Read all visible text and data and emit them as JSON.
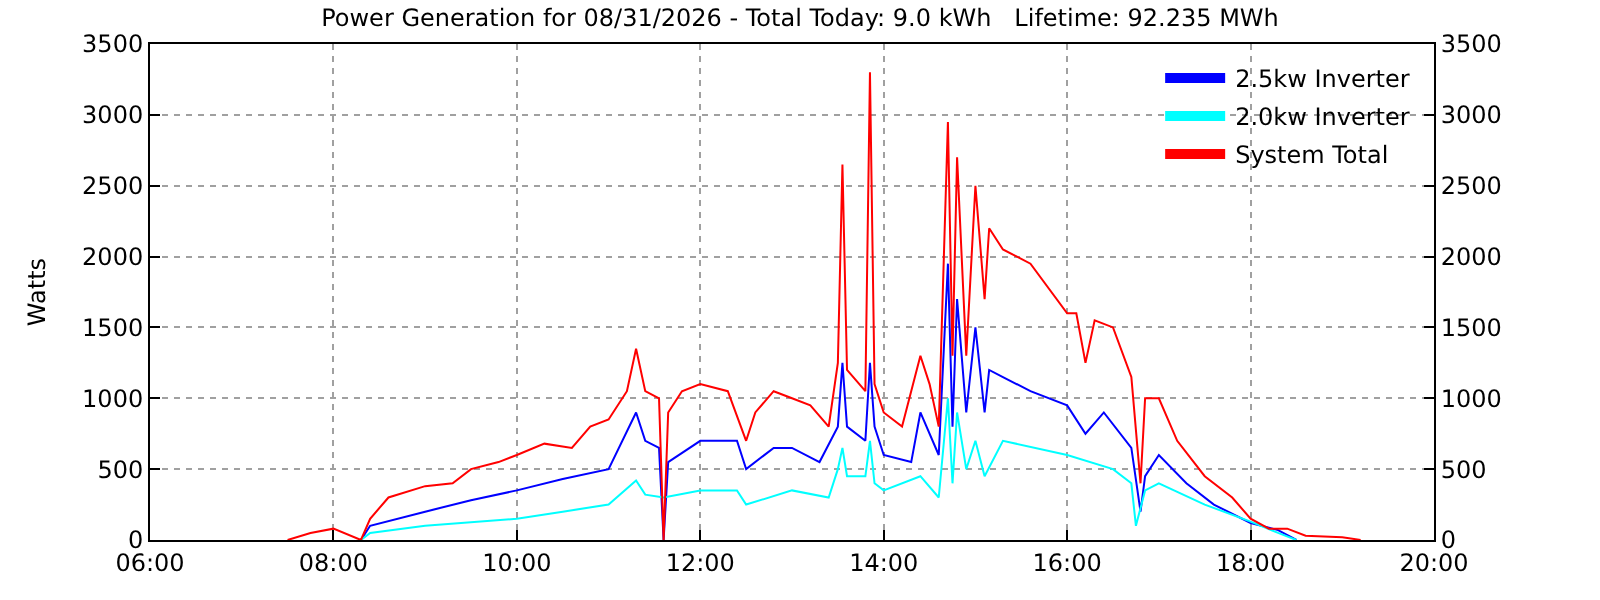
{
  "chart_data": {
    "type": "line",
    "title": "Power Generation for 08/31/2026 - Total Today: 9.0 kWh   Lifetime: 92.235 MWh",
    "ylabel": "Watts",
    "xlim": [
      6,
      20
    ],
    "xticks": [
      {
        "value": 6,
        "label": "06:00"
      },
      {
        "value": 8,
        "label": "08:00"
      },
      {
        "value": 10,
        "label": "10:00"
      },
      {
        "value": 12,
        "label": "12:00"
      },
      {
        "value": 14,
        "label": "14:00"
      },
      {
        "value": 16,
        "label": "16:00"
      },
      {
        "value": 18,
        "label": "18:00"
      },
      {
        "value": 20,
        "label": "20:00"
      }
    ],
    "ylim": [
      0,
      3500
    ],
    "yticks": [
      0,
      500,
      1000,
      1500,
      2000,
      2500,
      3000,
      3500
    ],
    "y2lim": [
      0,
      3500
    ],
    "y2ticks": [
      0,
      500,
      1000,
      1500,
      2000,
      2500,
      3000,
      3500
    ],
    "grid": true,
    "legend": "top right",
    "line_style": "solid",
    "marker": "none",
    "series": [
      {
        "name": "2.5kw Inverter",
        "color": "#0000ff",
        "x": [
          8.3,
          8.4,
          9.0,
          9.5,
          10.0,
          10.5,
          11.0,
          11.3,
          11.4,
          11.55,
          11.6,
          11.65,
          12.0,
          12.4,
          12.5,
          12.8,
          13.0,
          13.3,
          13.5,
          13.55,
          13.6,
          13.8,
          13.85,
          13.9,
          14.0,
          14.3,
          14.4,
          14.6,
          14.7,
          14.75,
          14.8,
          14.9,
          15.0,
          15.1,
          15.15,
          15.3,
          15.6,
          16.0,
          16.2,
          16.4,
          16.7,
          16.8,
          16.85,
          17.0,
          17.3,
          17.6,
          18.0,
          18.3,
          18.5
        ],
        "values": [
          0,
          100,
          200,
          280,
          350,
          430,
          500,
          900,
          700,
          650,
          0,
          550,
          700,
          700,
          500,
          650,
          650,
          550,
          800,
          1250,
          800,
          700,
          1250,
          800,
          600,
          550,
          900,
          600,
          1950,
          800,
          1700,
          900,
          1500,
          900,
          1200,
          1150,
          1050,
          950,
          750,
          900,
          650,
          200,
          450,
          600,
          400,
          250,
          120,
          70,
          0
        ]
      },
      {
        "name": "2.0kw Inverter",
        "color": "#00ffff",
        "x": [
          8.3,
          8.4,
          9.0,
          10.0,
          10.5,
          11.0,
          11.3,
          11.4,
          11.6,
          12.0,
          12.4,
          12.5,
          13.0,
          13.4,
          13.5,
          13.55,
          13.6,
          13.8,
          13.85,
          13.9,
          14.0,
          14.4,
          14.6,
          14.7,
          14.75,
          14.8,
          14.9,
          15.0,
          15.1,
          15.3,
          16.0,
          16.5,
          16.7,
          16.75,
          16.85,
          17.0,
          17.5,
          18.0,
          18.3,
          18.5
        ],
        "values": [
          0,
          50,
          100,
          150,
          200,
          250,
          420,
          320,
          300,
          350,
          350,
          250,
          350,
          300,
          500,
          650,
          450,
          450,
          700,
          400,
          350,
          450,
          300,
          1000,
          400,
          900,
          500,
          700,
          450,
          700,
          600,
          500,
          400,
          100,
          350,
          400,
          250,
          130,
          50,
          0
        ]
      },
      {
        "name": "System Total",
        "color": "#ff0000",
        "x": [
          7.5,
          7.75,
          8.0,
          8.3,
          8.4,
          8.6,
          9.0,
          9.3,
          9.5,
          9.8,
          10.0,
          10.3,
          10.6,
          10.8,
          11.0,
          11.2,
          11.3,
          11.4,
          11.55,
          11.6,
          11.65,
          11.8,
          12.0,
          12.3,
          12.5,
          12.6,
          12.8,
          13.0,
          13.2,
          13.4,
          13.5,
          13.55,
          13.6,
          13.8,
          13.85,
          13.9,
          14.0,
          14.2,
          14.4,
          14.5,
          14.6,
          14.7,
          14.75,
          14.8,
          14.9,
          15.0,
          15.1,
          15.15,
          15.3,
          15.6,
          16.0,
          16.1,
          16.2,
          16.3,
          16.5,
          16.7,
          16.8,
          16.85,
          17.0,
          17.2,
          17.5,
          17.8,
          18.0,
          18.2,
          18.4,
          18.6,
          19.0,
          19.2
        ],
        "values": [
          0,
          50,
          80,
          0,
          150,
          300,
          380,
          400,
          500,
          550,
          600,
          680,
          650,
          800,
          850,
          1050,
          1350,
          1050,
          1000,
          0,
          900,
          1050,
          1100,
          1050,
          700,
          900,
          1050,
          1000,
          950,
          800,
          1250,
          2650,
          1200,
          1050,
          3300,
          1100,
          900,
          800,
          1300,
          1100,
          800,
          2950,
          1300,
          2700,
          1300,
          2500,
          1700,
          2200,
          2050,
          1950,
          1600,
          1600,
          1250,
          1550,
          1500,
          1150,
          400,
          1000,
          1000,
          700,
          450,
          300,
          150,
          80,
          80,
          30,
          20,
          0
        ]
      }
    ]
  }
}
